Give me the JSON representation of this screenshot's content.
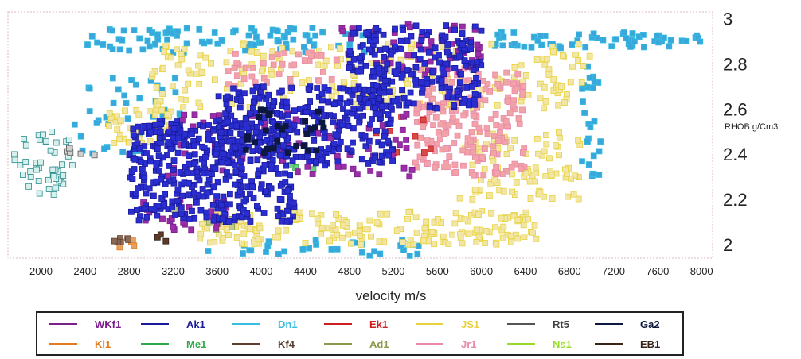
{
  "chart_data": {
    "type": "scatter",
    "title": "",
    "xlabel": "velocity m/s",
    "ylabel": "RHOB g/Cm3",
    "xlim": [
      1700,
      8100
    ],
    "ylim": [
      1.94,
      3.03
    ],
    "xticks": [
      2000,
      2400,
      2800,
      3200,
      3600,
      4000,
      4400,
      4800,
      5200,
      5600,
      6000,
      6400,
      6800,
      7200,
      7600,
      8000
    ],
    "yticks": [
      2,
      2.2,
      2.4,
      2.6,
      2.8,
      3
    ],
    "grid": false,
    "legend_position": "bottom",
    "marker": "square",
    "series": [
      {
        "name": "WKf1",
        "color": "#7b1f8c",
        "fill": "#9b2da8",
        "clouds": [
          {
            "x": [
              3000,
              5400
            ],
            "y": [
              2.3,
              2.58
            ],
            "n": 80
          },
          {
            "x": [
              4700,
              6000
            ],
            "y": [
              2.75,
              2.99
            ],
            "n": 60
          },
          {
            "x": [
              2900,
              3700
            ],
            "y": [
              2.05,
              2.2
            ],
            "n": 25
          }
        ]
      },
      {
        "name": "Ak1",
        "color": "#1a1a9c",
        "fill": "#2a2ed0",
        "clouds": [
          {
            "x": [
              2800,
              4300
            ],
            "y": [
              2.1,
              2.55
            ],
            "n": 400
          },
          {
            "x": [
              3600,
              5200
            ],
            "y": [
              2.35,
              2.7
            ],
            "n": 300
          },
          {
            "x": [
              4800,
              6000
            ],
            "y": [
              2.6,
              2.97
            ],
            "n": 220
          }
        ]
      },
      {
        "name": "Dn1",
        "color": "#38bde0",
        "fill": "#38a8dc",
        "clouds": [
          {
            "x": [
              2400,
              5000
            ],
            "y": [
              2.85,
              2.96
            ],
            "n": 90
          },
          {
            "x": [
              6100,
              8000
            ],
            "y": [
              2.87,
              2.94
            ],
            "n": 60
          },
          {
            "x": [
              2300,
              3300
            ],
            "y": [
              2.4,
              2.75
            ],
            "n": 50
          },
          {
            "x": [
              6900,
              7100
            ],
            "y": [
              2.3,
              2.8
            ],
            "n": 25
          },
          {
            "x": [
              3500,
              5500
            ],
            "y": [
              1.95,
              2.02
            ],
            "n": 35
          }
        ]
      },
      {
        "name": "Ek1",
        "color": "#cc1f1f",
        "fill": "#d84a4a",
        "clouds": [
          {
            "x": [
              5000,
              5600
            ],
            "y": [
              2.4,
              2.6
            ],
            "n": 10
          }
        ]
      },
      {
        "name": "JS1",
        "color": "#e8d23c",
        "fill": "#f2e6a6",
        "clouds": [
          {
            "x": [
              3000,
              7000
            ],
            "y": [
              2.6,
              2.9
            ],
            "n": 230
          },
          {
            "x": [
              3400,
              6500
            ],
            "y": [
              2.0,
              2.15
            ],
            "n": 180
          },
          {
            "x": [
              5800,
              6900
            ],
            "y": [
              2.2,
              2.5
            ],
            "n": 90
          },
          {
            "x": [
              2600,
              3200
            ],
            "y": [
              2.45,
              2.6
            ],
            "n": 40
          }
        ]
      },
      {
        "name": "Rt5",
        "color": "#555555",
        "fill": "#cfcfcf",
        "clouds": [
          {
            "x": [
              2200,
              2500
            ],
            "y": [
              2.38,
              2.43
            ],
            "n": 6
          }
        ]
      },
      {
        "name": "Ga2",
        "color": "#0c1840",
        "fill": "#0c1840",
        "clouds": [
          {
            "x": [
              3800,
              4600
            ],
            "y": [
              2.4,
              2.6
            ],
            "n": 30
          }
        ]
      },
      {
        "name": "Kl1",
        "color": "#e07b1f",
        "fill": "#e8a060",
        "clouds": [
          {
            "x": [
              2700,
              2900
            ],
            "y": [
              1.98,
              2.02
            ],
            "n": 5
          }
        ]
      },
      {
        "name": "Me1",
        "color": "#2ea84a",
        "fill": "#6fcf85",
        "clouds": [
          {
            "x": [
              4200,
              4500
            ],
            "y": [
              2.3,
              2.4
            ],
            "n": 3
          }
        ]
      },
      {
        "name": "Kf4",
        "color": "#5c3d2e",
        "fill": "#8b6a55",
        "clouds": [
          {
            "x": [
              2650,
              2800
            ],
            "y": [
              1.98,
              2.03
            ],
            "n": 6
          }
        ]
      },
      {
        "name": "Ad1",
        "color": "#8a9a4a",
        "fill": "#c2cc8a",
        "clouds": [
          {
            "x": [
              3200,
              3800
            ],
            "y": [
              2.06,
              2.18
            ],
            "n": 10
          }
        ]
      },
      {
        "name": "Jr1",
        "color": "#e88aa8",
        "fill": "#f2a3a8",
        "clouds": [
          {
            "x": [
              5400,
              6400
            ],
            "y": [
              2.3,
              2.78
            ],
            "n": 200
          },
          {
            "x": [
              3700,
              4700
            ],
            "y": [
              2.7,
              2.85
            ],
            "n": 40
          }
        ]
      },
      {
        "name": "Ns1",
        "color": "#9ad82a",
        "fill": "#c8ef7a",
        "clouds": [
          {
            "x": [
              1750,
              2300
            ],
            "y": [
              2.25,
              2.45
            ],
            "n": 0
          }
        ]
      },
      {
        "name": "EB1",
        "color": "#3a2418",
        "fill": "#5a3a28",
        "clouds": [
          {
            "x": [
              2900,
              3200
            ],
            "y": [
              2.0,
              2.05
            ],
            "n": 3
          }
        ]
      }
    ],
    "legend_layout": [
      [
        "WKf1",
        "Ak1",
        "Dn1",
        "Ek1",
        "JS1",
        "Rt5",
        "Ga2"
      ],
      [
        "Kl1",
        "Me1",
        "Kf4",
        "Ad1",
        "Jr1",
        "Ns1",
        "EB1"
      ]
    ],
    "legend_label_colors": {
      "WKf1": "#7b1f8c",
      "Ak1": "#1a1a9c",
      "Dn1": "#38bde0",
      "Ek1": "#cc1f1f",
      "JS1": "#e8d23c",
      "Rt5": "#444444",
      "Ga2": "#0c1840",
      "Kl1": "#e07b1f",
      "Me1": "#2ea84a",
      "Kf4": "#5c3d2e",
      "Ad1": "#8a9a4a",
      "Jr1": "#e88aa8",
      "Ns1": "#9ad82a",
      "EB1": "#3a2418"
    },
    "extra_points": {
      "light_teal": {
        "color": "#2b8c8c",
        "fill": "#d6f0ee",
        "x": [
          1750,
          2300
        ],
        "y": [
          2.22,
          2.5
        ],
        "n": 45
      }
    }
  }
}
